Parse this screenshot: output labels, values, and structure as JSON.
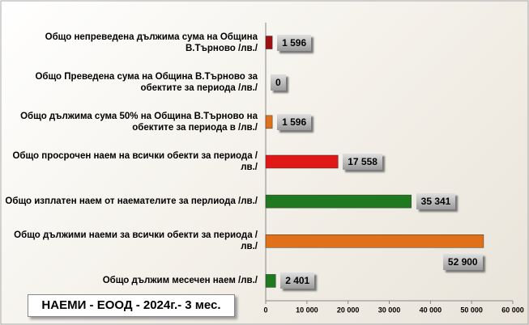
{
  "chart_data": {
    "type": "bar",
    "orientation": "horizontal",
    "title": "НАЕМИ - ЕООД - 2024г.- 3 мес.",
    "categories": [
      "Общо непреведена дължима сума на Община В.Търново  /лв./",
      "Общо Преведена сума на Община В.Търново за обектите за периода   /лв./",
      "Общо дължима сума 50% на Община В.Търново на обектите за периода в  /лв./",
      "Общо просрочен наем на всички обекти за периода /лв./",
      "Общо изплатен наем от наемателите за перлиода /лв./",
      "Общо дължими наеми за всички обекти за периода /лв./",
      "Общо дължим месечен наем /лв./"
    ],
    "values": [
      1596,
      0,
      1596,
      17558,
      35341,
      52900,
      2401
    ],
    "value_labels": [
      "1 596",
      "0",
      "1 596",
      "17 558",
      "35 341",
      "52 900",
      "2 401"
    ],
    "colors": [
      "#a01010",
      "#e0701a",
      "#e0701a",
      "#e01818",
      "#1f7a1f",
      "#e0701a",
      "#1f7a1f"
    ],
    "xlim": [
      0,
      60000
    ],
    "xticks": [
      0,
      {
        "value": 10000,
        "label": "10 000"
      },
      {
        "value": 20000,
        "label": "20 000"
      },
      {
        "value": 30000,
        "label": "30 000"
      },
      {
        "value": 40000,
        "label": "40 000"
      },
      {
        "value": 50000,
        "label": "50 000"
      },
      {
        "value": 60000,
        "label": "60 000"
      }
    ]
  }
}
